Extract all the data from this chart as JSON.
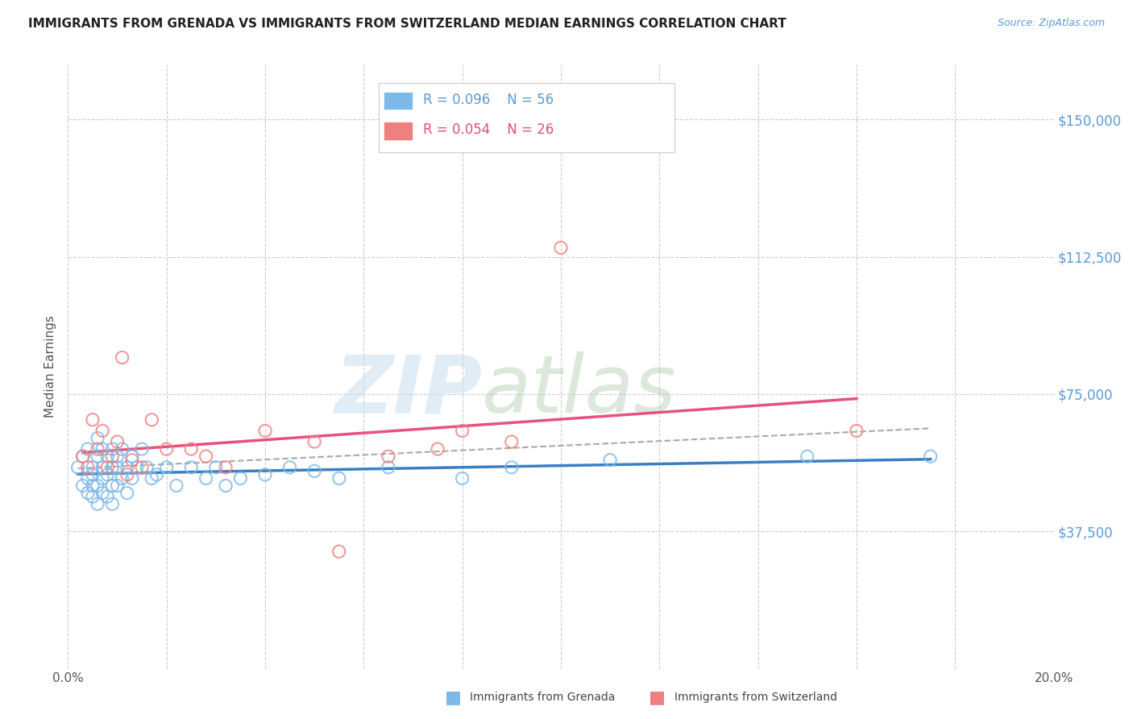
{
  "title": "IMMIGRANTS FROM GRENADA VS IMMIGRANTS FROM SWITZERLAND MEDIAN EARNINGS CORRELATION CHART",
  "source_text": "Source: ZipAtlas.com",
  "ylabel": "Median Earnings",
  "xlim": [
    0.0,
    0.2
  ],
  "ylim": [
    0,
    165000
  ],
  "yticks": [
    0,
    37500,
    75000,
    112500,
    150000
  ],
  "ytick_labels": [
    "",
    "$37,500",
    "$75,000",
    "$112,500",
    "$150,000"
  ],
  "xticks": [
    0.0,
    0.02,
    0.04,
    0.06,
    0.08,
    0.1,
    0.12,
    0.14,
    0.16,
    0.18,
    0.2
  ],
  "xtick_labels": [
    "0.0%",
    "",
    "",
    "",
    "",
    "",
    "",
    "",
    "",
    "",
    "20.0%"
  ],
  "grenada_R": "0.096",
  "grenada_N": "56",
  "switzerland_R": "0.054",
  "switzerland_N": "26",
  "grenada_color": "#7CB8E8",
  "switzerland_color": "#F08080",
  "grenada_line_color": "#3A7FC1",
  "switzerland_line_color": "#E85080",
  "trend_line_color": "#AAAAAA",
  "grenada_x": [
    0.002,
    0.003,
    0.003,
    0.004,
    0.004,
    0.004,
    0.005,
    0.005,
    0.005,
    0.005,
    0.006,
    0.006,
    0.006,
    0.006,
    0.007,
    0.007,
    0.007,
    0.007,
    0.008,
    0.008,
    0.008,
    0.009,
    0.009,
    0.009,
    0.009,
    0.01,
    0.01,
    0.01,
    0.011,
    0.011,
    0.012,
    0.012,
    0.013,
    0.013,
    0.014,
    0.015,
    0.016,
    0.017,
    0.018,
    0.02,
    0.022,
    0.025,
    0.028,
    0.03,
    0.032,
    0.035,
    0.04,
    0.045,
    0.05,
    0.055,
    0.065,
    0.08,
    0.09,
    0.11,
    0.15,
    0.175
  ],
  "grenada_y": [
    55000,
    50000,
    58000,
    52000,
    48000,
    60000,
    53000,
    47000,
    55000,
    50000,
    63000,
    58000,
    50000,
    45000,
    55000,
    60000,
    52000,
    48000,
    58000,
    53000,
    47000,
    55000,
    60000,
    50000,
    45000,
    55000,
    58000,
    50000,
    60000,
    52000,
    55000,
    48000,
    58000,
    52000,
    55000,
    60000,
    55000,
    52000,
    53000,
    55000,
    50000,
    55000,
    52000,
    55000,
    50000,
    52000,
    53000,
    55000,
    54000,
    52000,
    55000,
    52000,
    55000,
    57000,
    58000,
    58000
  ],
  "switzerland_x": [
    0.003,
    0.004,
    0.005,
    0.006,
    0.007,
    0.008,
    0.009,
    0.01,
    0.011,
    0.012,
    0.013,
    0.015,
    0.017,
    0.02,
    0.025,
    0.028,
    0.032,
    0.04,
    0.05,
    0.055,
    0.065,
    0.075,
    0.08,
    0.09,
    0.1,
    0.16
  ],
  "switzerland_y": [
    58000,
    55000,
    68000,
    60000,
    65000,
    55000,
    58000,
    62000,
    85000,
    53000,
    57000,
    55000,
    68000,
    60000,
    60000,
    58000,
    55000,
    65000,
    62000,
    32000,
    58000,
    60000,
    65000,
    62000,
    115000,
    65000
  ]
}
